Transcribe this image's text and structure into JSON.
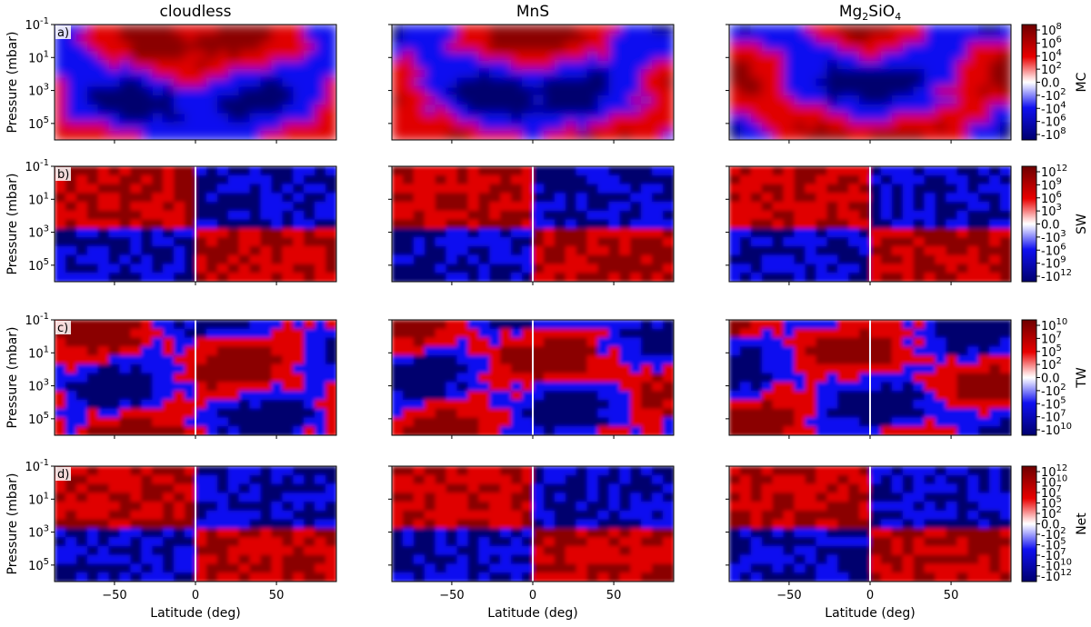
{
  "columns": [
    {
      "title": "cloudless"
    },
    {
      "title": "MnS"
    },
    {
      "title_main": "Mg",
      "title_sub1": "2",
      "title_mid": "SiO",
      "title_sub2": "4"
    }
  ],
  "rows": [
    {
      "panel_label": "a)",
      "cbar_label": "MC",
      "cbar_ticks": [
        {
          "b": "10",
          "e": "8",
          "n": false
        },
        {
          "b": "10",
          "e": "6",
          "n": false
        },
        {
          "b": "10",
          "e": "4",
          "n": false
        },
        {
          "b": "10",
          "e": "2",
          "n": false
        },
        {
          "b": "0.0",
          "e": "",
          "n": false
        },
        {
          "b": "10",
          "e": "2",
          "n": true
        },
        {
          "b": "10",
          "e": "4",
          "n": true
        },
        {
          "b": "10",
          "e": "6",
          "n": true
        },
        {
          "b": "10",
          "e": "8",
          "n": true
        }
      ]
    },
    {
      "panel_label": "b)",
      "cbar_label": "SW",
      "cbar_ticks": [
        {
          "b": "10",
          "e": "12",
          "n": false
        },
        {
          "b": "10",
          "e": "9",
          "n": false
        },
        {
          "b": "10",
          "e": "6",
          "n": false
        },
        {
          "b": "10",
          "e": "3",
          "n": false
        },
        {
          "b": "0.0",
          "e": "",
          "n": false
        },
        {
          "b": "10",
          "e": "3",
          "n": true
        },
        {
          "b": "10",
          "e": "6",
          "n": true
        },
        {
          "b": "10",
          "e": "9",
          "n": true
        },
        {
          "b": "10",
          "e": "12",
          "n": true
        }
      ]
    },
    {
      "panel_label": "c)",
      "cbar_label": "TW",
      "cbar_ticks": [
        {
          "b": "10",
          "e": "10",
          "n": false
        },
        {
          "b": "10",
          "e": "7",
          "n": false
        },
        {
          "b": "10",
          "e": "5",
          "n": false
        },
        {
          "b": "10",
          "e": "2",
          "n": false
        },
        {
          "b": "0.0",
          "e": "",
          "n": false
        },
        {
          "b": "10",
          "e": "2",
          "n": true
        },
        {
          "b": "10",
          "e": "5",
          "n": true
        },
        {
          "b": "10",
          "e": "7",
          "n": true
        },
        {
          "b": "10",
          "e": "10",
          "n": true
        }
      ]
    },
    {
      "panel_label": "d)",
      "cbar_label": "Net",
      "cbar_ticks": [
        {
          "b": "10",
          "e": "12",
          "n": false
        },
        {
          "b": "10",
          "e": "10",
          "n": false
        },
        {
          "b": "10",
          "e": "7",
          "n": false
        },
        {
          "b": "10",
          "e": "5",
          "n": false
        },
        {
          "b": "10",
          "e": "2",
          "n": false
        },
        {
          "b": "0.0",
          "e": "",
          "n": false
        },
        {
          "b": "10",
          "e": "2",
          "n": true
        },
        {
          "b": "10",
          "e": "5",
          "n": true
        },
        {
          "b": "10",
          "e": "7",
          "n": true
        },
        {
          "b": "10",
          "e": "10",
          "n": true
        },
        {
          "b": "10",
          "e": "12",
          "n": true
        }
      ]
    }
  ],
  "chart_data": {
    "type": "heatmap",
    "xlabel": "Latitude (deg)",
    "ylabel": "Pressure (mbar)",
    "x_ticks": [
      -50,
      0,
      50
    ],
    "xlim": [
      -87,
      87
    ],
    "y_scale": "log",
    "y_inverted": true,
    "y_ticks": [
      {
        "b": "10",
        "e": "-1"
      },
      {
        "b": "10",
        "e": "1"
      },
      {
        "b": "10",
        "e": "3"
      },
      {
        "b": "10",
        "e": "5"
      }
    ],
    "ylim_mbar": [
      0.1,
      1000000
    ],
    "colormap": "seismic",
    "colors": {
      "positive": "#e00000",
      "positive_dark": "#8b0000",
      "negative": "#1010f0",
      "negative_dark": "#00006e",
      "zero": "#ffffff"
    }
  }
}
